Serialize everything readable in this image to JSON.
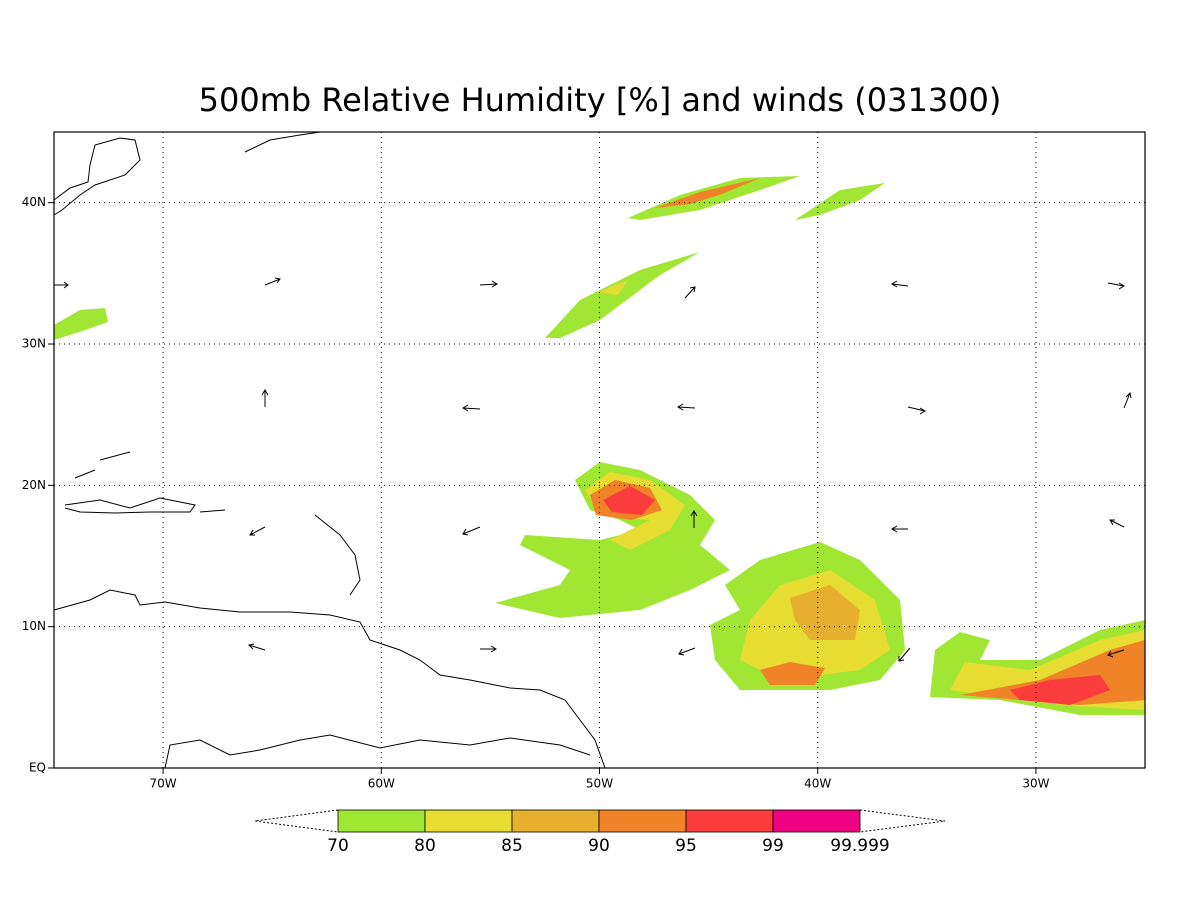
{
  "title": "500mb Relative Humidity [%] and winds (031300)",
  "map": {
    "xlim": [
      -75,
      -25
    ],
    "ylim": [
      0,
      45
    ],
    "grid": true,
    "xticks": [
      {
        "value": -70,
        "label": "70W"
      },
      {
        "value": -60,
        "label": "60W"
      },
      {
        "value": -50,
        "label": "50W"
      },
      {
        "value": -40,
        "label": "40W"
      },
      {
        "value": -30,
        "label": "30W"
      }
    ],
    "yticks": [
      {
        "value": 0,
        "label": "EQ"
      },
      {
        "value": 10,
        "label": "10N"
      },
      {
        "value": 20,
        "label": "20N"
      },
      {
        "value": 30,
        "label": "30N"
      },
      {
        "value": 40,
        "label": "40N"
      }
    ]
  },
  "colorbar": {
    "levels": [
      70,
      80,
      85,
      90,
      95,
      99,
      99.999
    ],
    "colors": [
      "#a0e632",
      "#e6dc32",
      "#e6af2d",
      "#f08228",
      "#fa3c3c",
      "#f00082"
    ]
  }
}
